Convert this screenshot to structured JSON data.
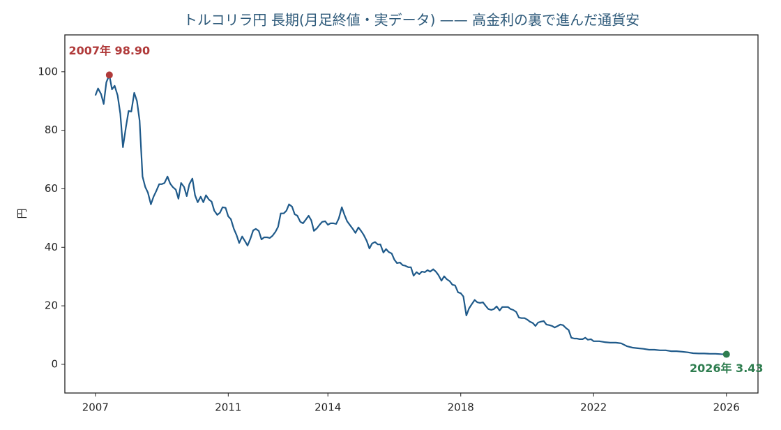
{
  "chart_data": {
    "type": "line",
    "title": "トルコリラ円 長期(月足終値・実データ) —— 高金利の裏で進んだ通貨安",
    "y_label": "円",
    "x": [
      2007.0,
      2007.08,
      2007.17,
      2007.25,
      2007.33,
      2007.42,
      2007.5,
      2007.58,
      2007.67,
      2007.75,
      2007.83,
      2007.92,
      2008.0,
      2008.08,
      2008.17,
      2008.25,
      2008.33,
      2008.42,
      2008.5,
      2008.58,
      2008.67,
      2008.75,
      2008.83,
      2008.92,
      2009.0,
      2009.08,
      2009.17,
      2009.25,
      2009.33,
      2009.42,
      2009.5,
      2009.58,
      2009.67,
      2009.75,
      2009.83,
      2009.92,
      2010.0,
      2010.08,
      2010.17,
      2010.25,
      2010.33,
      2010.42,
      2010.5,
      2010.58,
      2010.67,
      2010.75,
      2010.83,
      2010.92,
      2011.0,
      2011.08,
      2011.17,
      2011.25,
      2011.33,
      2011.42,
      2011.5,
      2011.58,
      2011.67,
      2011.75,
      2011.83,
      2011.92,
      2012.0,
      2012.08,
      2012.17,
      2012.25,
      2012.33,
      2012.42,
      2012.5,
      2012.58,
      2012.67,
      2012.75,
      2012.83,
      2012.92,
      2013.0,
      2013.08,
      2013.17,
      2013.25,
      2013.33,
      2013.42,
      2013.5,
      2013.58,
      2013.67,
      2013.75,
      2013.83,
      2013.92,
      2014.0,
      2014.08,
      2014.17,
      2014.25,
      2014.33,
      2014.42,
      2014.5,
      2014.58,
      2014.67,
      2014.75,
      2014.83,
      2014.92,
      2015.0,
      2015.08,
      2015.17,
      2015.25,
      2015.33,
      2015.42,
      2015.5,
      2015.58,
      2015.67,
      2015.75,
      2015.83,
      2015.92,
      2016.0,
      2016.08,
      2016.17,
      2016.25,
      2016.33,
      2016.42,
      2016.5,
      2016.58,
      2016.67,
      2016.75,
      2016.83,
      2016.92,
      2017.0,
      2017.08,
      2017.17,
      2017.25,
      2017.33,
      2017.42,
      2017.5,
      2017.58,
      2017.67,
      2017.75,
      2017.83,
      2017.92,
      2018.0,
      2018.08,
      2018.17,
      2018.25,
      2018.33,
      2018.42,
      2018.5,
      2018.58,
      2018.67,
      2018.75,
      2018.83,
      2018.92,
      2019.0,
      2019.08,
      2019.17,
      2019.25,
      2019.33,
      2019.42,
      2019.5,
      2019.58,
      2019.67,
      2019.75,
      2019.83,
      2019.92,
      2020.0,
      2020.08,
      2020.17,
      2020.25,
      2020.33,
      2020.42,
      2020.5,
      2020.58,
      2020.67,
      2020.75,
      2020.83,
      2020.92,
      2021.0,
      2021.08,
      2021.17,
      2021.25,
      2021.33,
      2021.42,
      2021.5,
      2021.58,
      2021.67,
      2021.75,
      2021.83,
      2021.92,
      2022.0,
      2022.17,
      2022.33,
      2022.5,
      2022.67,
      2022.83,
      2023.0,
      2023.17,
      2023.33,
      2023.5,
      2023.67,
      2023.83,
      2024.0,
      2024.17,
      2024.33,
      2024.5,
      2024.67,
      2024.83,
      2025.0,
      2025.17,
      2025.33,
      2025.5,
      2025.67,
      2025.83,
      2026.0
    ],
    "series": [
      {
        "name": "トルコリラ円",
        "color": "#1f5a8a",
        "values": [
          91.9,
          94.3,
          92.4,
          89.0,
          96.4,
          98.9,
          94.0,
          95.2,
          91.9,
          85.7,
          74.2,
          81.1,
          86.6,
          86.4,
          92.8,
          90.0,
          83.3,
          64.2,
          60.6,
          58.7,
          54.7,
          57.3,
          59.2,
          61.6,
          61.6,
          62.0,
          64.2,
          61.8,
          60.6,
          59.7,
          56.6,
          62.0,
          60.6,
          57.5,
          61.6,
          63.5,
          57.8,
          55.4,
          57.3,
          55.4,
          57.8,
          56.3,
          55.6,
          52.5,
          51.1,
          51.8,
          53.7,
          53.5,
          50.6,
          49.6,
          46.3,
          44.2,
          41.5,
          43.7,
          42.2,
          40.6,
          43.0,
          45.8,
          46.3,
          45.6,
          42.7,
          43.4,
          43.4,
          43.2,
          43.9,
          45.3,
          47.0,
          51.6,
          51.6,
          52.5,
          54.7,
          53.9,
          51.3,
          50.8,
          48.7,
          48.2,
          49.4,
          50.8,
          49.2,
          45.6,
          46.5,
          47.7,
          48.7,
          48.9,
          47.7,
          48.2,
          48.2,
          48.0,
          49.9,
          53.7,
          51.1,
          48.9,
          47.5,
          46.3,
          44.9,
          46.8,
          45.6,
          44.2,
          42.2,
          39.6,
          41.3,
          41.8,
          41.0,
          41.0,
          38.2,
          39.4,
          38.4,
          37.9,
          35.8,
          34.6,
          34.8,
          33.9,
          33.7,
          33.2,
          33.2,
          30.3,
          31.5,
          30.8,
          31.7,
          31.5,
          32.2,
          31.7,
          32.5,
          31.7,
          30.5,
          28.6,
          30.1,
          29.1,
          28.4,
          27.2,
          27.0,
          24.6,
          24.3,
          23.2,
          16.7,
          19.1,
          20.5,
          22.0,
          21.2,
          21.0,
          21.2,
          20.0,
          18.9,
          18.6,
          18.9,
          19.8,
          18.4,
          19.6,
          19.6,
          19.6,
          18.9,
          18.6,
          17.9,
          16.0,
          15.8,
          15.8,
          15.3,
          14.6,
          14.1,
          13.1,
          14.3,
          14.6,
          14.8,
          13.6,
          13.4,
          13.1,
          12.6,
          13.1,
          13.6,
          13.4,
          12.4,
          11.7,
          9.1,
          8.8,
          8.8,
          8.6,
          8.6,
          9.1,
          8.4,
          8.6,
          7.9,
          7.9,
          7.6,
          7.4,
          7.4,
          7.2,
          6.2,
          5.7,
          5.5,
          5.3,
          5.0,
          5.0,
          4.8,
          4.8,
          4.5,
          4.5,
          4.3,
          4.1,
          3.8,
          3.7,
          3.7,
          3.6,
          3.6,
          3.5,
          3.43
        ]
      }
    ],
    "annotations": [
      {
        "text": "2007年 98.90",
        "x": 2007.42,
        "y": 98.9,
        "color": "#b03a3a"
      },
      {
        "text": "2026年 3.43",
        "x": 2026.0,
        "y": 3.43,
        "color": "#2e7d4f"
      }
    ],
    "xlim": [
      2006.08,
      2026.95
    ],
    "xticks": [
      2007,
      2011,
      2014,
      2018,
      2022,
      2026
    ],
    "ylim": [
      -9.8,
      112.6
    ],
    "yticks": [
      0,
      20,
      40,
      60,
      80,
      100
    ],
    "grid": false
  }
}
